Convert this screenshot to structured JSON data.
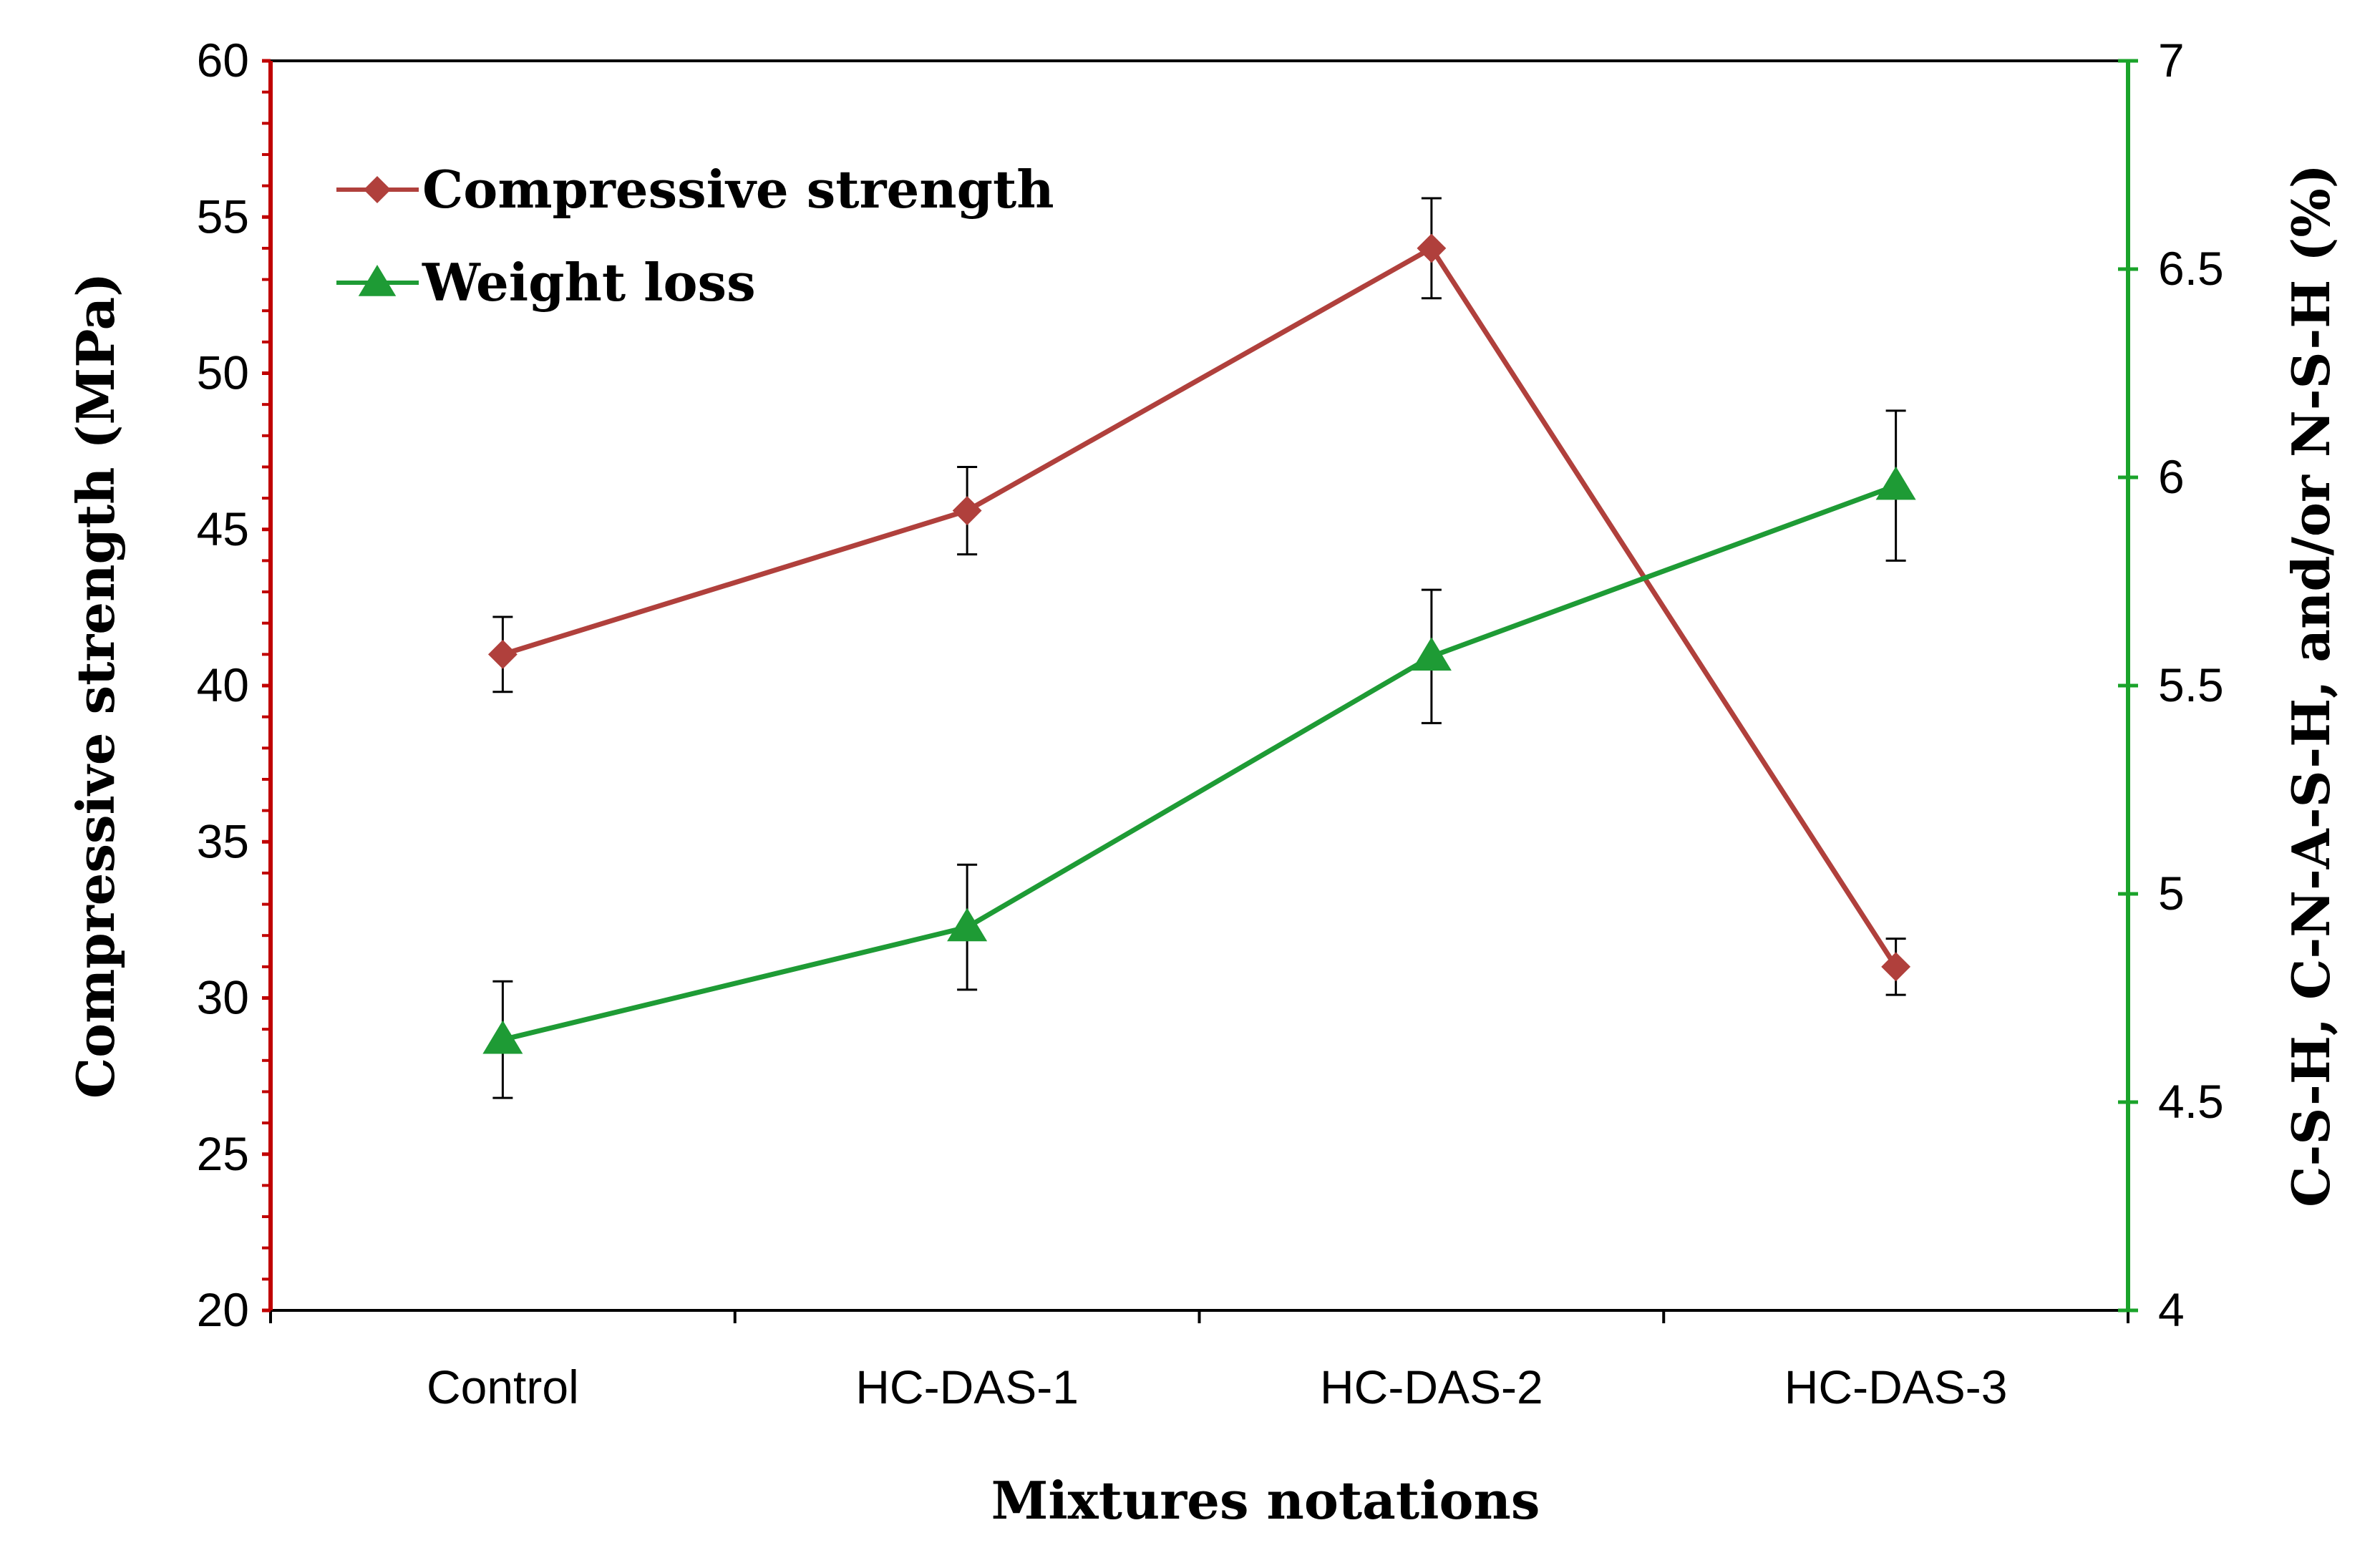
{
  "chart_data": {
    "type": "line",
    "title": "",
    "categories": [
      "Control",
      "HC-DAS-1",
      "HC-DAS-2",
      "HC-DAS-3"
    ],
    "xlabel": "Mixtures notations",
    "ylabel": "Compressive strength (MPa)",
    "y2label": "C-S-H, C-N-A-S-H, and/or N-S-H (%)",
    "ylim": [
      20,
      60
    ],
    "y2lim": [
      4,
      7
    ],
    "yticks": [
      "20",
      "25",
      "30",
      "35",
      "40",
      "45",
      "50",
      "55",
      "60"
    ],
    "y2ticks": [
      "4",
      "4.5",
      "5",
      "5.5",
      "6",
      "6.5",
      "7"
    ],
    "grid": false,
    "legend_position": "top-left",
    "colors": {
      "left_axis": "#c00000",
      "right_axis": "#1aa32a",
      "compressive_series": "#b0403c",
      "weight_series": "#1e9b35",
      "error_bar": "#000000"
    },
    "series": [
      {
        "name": "Compressive strength",
        "axis": "left",
        "marker": "diamond",
        "values": [
          41.0,
          45.6,
          54.0,
          31.0
        ],
        "error": [
          1.2,
          1.4,
          1.6,
          0.9
        ]
      },
      {
        "name": "Weight loss",
        "axis": "right",
        "marker": "triangle",
        "values": [
          4.65,
          4.92,
          5.57,
          5.98
        ],
        "error": [
          0.14,
          0.15,
          0.16,
          0.18
        ]
      }
    ]
  }
}
